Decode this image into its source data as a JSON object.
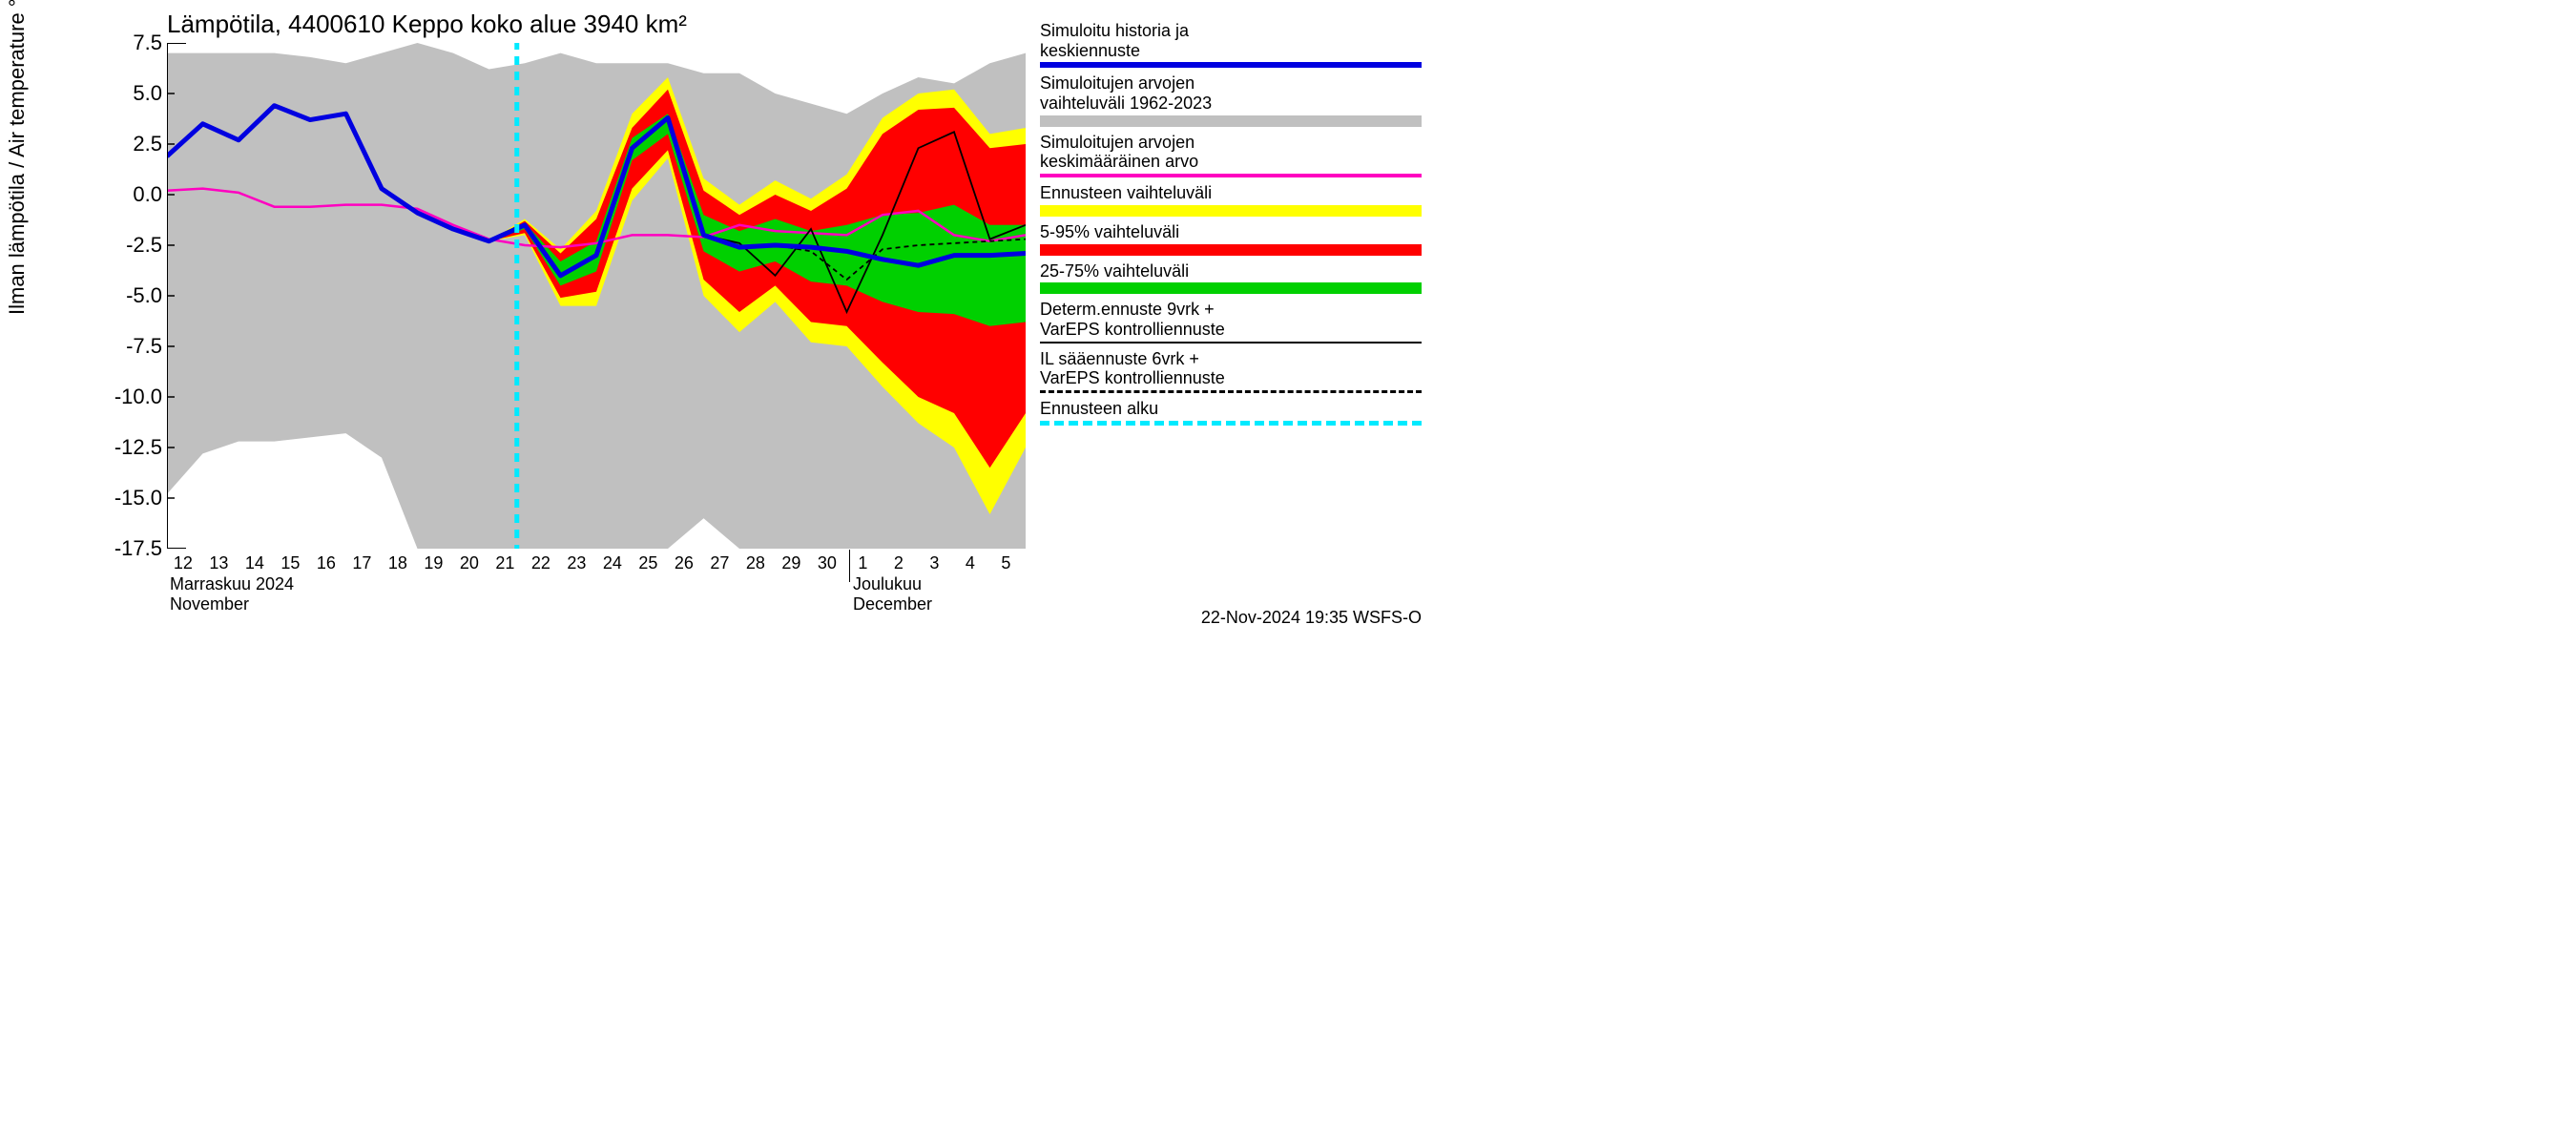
{
  "chart": {
    "type": "line",
    "title": "Lämpötila, 4400610 Keppo koko alue 3940 km²",
    "ylabel": "Ilman lämpötila / Air temperature    °C",
    "footer": "22-Nov-2024 19:35 WSFS-O",
    "background_color": "#ffffff",
    "grid_color": "#808080",
    "x": {
      "ticks": [
        12,
        13,
        14,
        15,
        16,
        17,
        18,
        19,
        20,
        21,
        22,
        23,
        24,
        25,
        26,
        27,
        28,
        29,
        30,
        1,
        2,
        3,
        4,
        5
      ],
      "month1_fi": "Marraskuu 2024",
      "month1_en": "November",
      "month2_fi": "Joulukuu",
      "month2_en": "December",
      "month_split_index": 19
    },
    "y": {
      "min": -17.5,
      "max": 7.5,
      "step": 2.5,
      "ticks": [
        7.5,
        5.0,
        2.5,
        0.0,
        -2.5,
        -5.0,
        -7.5,
        -10.0,
        -12.5,
        -15.0,
        -17.5
      ]
    },
    "forecast_start_index": 10,
    "colors": {
      "historical_range": "#c0c0c0",
      "outer_band": "#ffff00",
      "mid_band": "#ff0000",
      "inner_band": "#00d000",
      "blue_line": "#0000e0",
      "magenta_line": "#ff00c0",
      "black_line": "#000000",
      "forecast_marker": "#00eaff"
    },
    "series": {
      "hist_top": [
        7.0,
        7.0,
        7.0,
        7.0,
        6.8,
        6.5,
        7.0,
        7.5,
        7.0,
        6.2,
        6.5,
        7.0,
        6.5,
        6.5,
        6.5,
        6.0,
        6.0,
        5.0,
        4.5,
        4.0,
        5.0,
        5.8,
        5.5,
        6.5,
        7.0
      ],
      "hist_bot": [
        -14.8,
        -12.8,
        -12.2,
        -12.2,
        -12.0,
        -11.8,
        -13.0,
        -17.5,
        -17.5,
        -17.5,
        -17.5,
        -17.5,
        -17.5,
        -17.5,
        -17.5,
        -16.0,
        -17.5,
        -17.5,
        -17.5,
        -17.5,
        -17.5,
        -17.5,
        -17.5,
        -17.5,
        -17.5
      ],
      "yellow_top": [
        1.9,
        3.5,
        2.7,
        4.4,
        3.7,
        4.0,
        0.3,
        -0.9,
        -1.7,
        -2.3,
        -1.2,
        -2.7,
        -0.8,
        4.0,
        5.8,
        0.8,
        -0.5,
        0.7,
        -0.2,
        1.0,
        3.8,
        5.0,
        5.2,
        3.0,
        3.3
      ],
      "yellow_bot": [
        1.9,
        3.5,
        2.7,
        4.4,
        3.7,
        4.0,
        0.3,
        -0.9,
        -1.7,
        -2.3,
        -2.0,
        -5.5,
        -5.5,
        -0.3,
        1.8,
        -5.0,
        -6.8,
        -5.3,
        -7.3,
        -7.5,
        -9.5,
        -11.3,
        -12.5,
        -15.8,
        -12.5
      ],
      "red_top": [
        1.9,
        3.5,
        2.7,
        4.4,
        3.7,
        4.0,
        0.3,
        -0.9,
        -1.7,
        -2.3,
        -1.3,
        -2.9,
        -1.2,
        3.3,
        5.2,
        0.2,
        -1.0,
        0.0,
        -0.8,
        0.3,
        3.0,
        4.2,
        4.3,
        2.3,
        2.5
      ],
      "red_bot": [
        1.9,
        3.5,
        2.7,
        4.4,
        3.7,
        4.0,
        0.3,
        -0.9,
        -1.7,
        -2.3,
        -1.9,
        -5.1,
        -4.8,
        0.3,
        2.2,
        -4.2,
        -5.8,
        -4.5,
        -6.3,
        -6.5,
        -8.3,
        -10.0,
        -10.8,
        -13.5,
        -10.8
      ],
      "green_top": [
        1.9,
        3.5,
        2.7,
        4.4,
        3.7,
        4.0,
        0.3,
        -0.9,
        -1.7,
        -2.3,
        -1.4,
        -3.3,
        -2.3,
        2.8,
        4.0,
        -1.0,
        -1.8,
        -1.2,
        -1.8,
        -1.5,
        -1.0,
        -0.9,
        -0.5,
        -1.5,
        -1.5
      ],
      "green_bot": [
        1.9,
        3.5,
        2.7,
        4.4,
        3.7,
        4.0,
        0.3,
        -0.9,
        -1.7,
        -2.3,
        -1.7,
        -4.5,
        -3.8,
        1.7,
        3.0,
        -2.8,
        -3.8,
        -3.3,
        -4.3,
        -4.5,
        -5.3,
        -5.8,
        -5.9,
        -6.5,
        -6.3
      ],
      "blue": [
        1.9,
        3.5,
        2.7,
        4.4,
        3.7,
        4.0,
        0.3,
        -0.9,
        -1.7,
        -2.3,
        -1.5,
        -4.0,
        -3.0,
        2.3,
        3.8,
        -2.0,
        -2.6,
        -2.5,
        -2.6,
        -2.8,
        -3.2,
        -3.5,
        -3.0,
        -3.0,
        -2.9
      ],
      "magenta": [
        0.2,
        0.3,
        0.1,
        -0.6,
        -0.6,
        -0.5,
        -0.5,
        -0.7,
        -1.5,
        -2.2,
        -2.5,
        -2.6,
        -2.4,
        -2.0,
        -2.0,
        -2.1,
        -1.5,
        -1.8,
        -1.9,
        -2.0,
        -1.0,
        -0.8,
        -2.0,
        -2.3,
        -2.0
      ],
      "black_solid": [
        null,
        null,
        null,
        null,
        null,
        null,
        null,
        null,
        null,
        null,
        -1.5,
        -4.0,
        -3.0,
        2.3,
        3.8,
        -2.0,
        -2.4,
        -4.0,
        -1.7,
        -5.8,
        -2.0,
        2.3,
        3.1,
        -2.2,
        -1.5
      ],
      "black_dash": [
        null,
        null,
        null,
        null,
        null,
        null,
        null,
        null,
        null,
        null,
        -1.5,
        -4.0,
        -3.0,
        2.3,
        3.8,
        -2.0,
        -2.6,
        -2.5,
        -2.8,
        -4.2,
        -2.7,
        -2.5,
        -2.4,
        -2.3,
        -2.2
      ]
    },
    "legend": [
      {
        "text1": "Simuloitu historia ja",
        "text2": "keskiennuste",
        "swatch": "blue",
        "style": "thick"
      },
      {
        "text1": "Simuloitujen arvojen",
        "text2": "vaihteluväli 1962-2023",
        "swatch": "gray",
        "style": "block"
      },
      {
        "text1": "Simuloitujen arvojen",
        "text2": "keskimääräinen arvo",
        "swatch": "magenta",
        "style": "thin"
      },
      {
        "text1": "Ennusteen vaihteluväli",
        "text2": "",
        "swatch": "yellow",
        "style": "block"
      },
      {
        "text1": "5-95% vaihteluväli",
        "text2": "",
        "swatch": "red",
        "style": "block"
      },
      {
        "text1": "25-75% vaihteluväli",
        "text2": "",
        "swatch": "green",
        "style": "block"
      },
      {
        "text1": "Determ.ennuste 9vrk +",
        "text2": "VarEPS kontrolliennuste",
        "swatch": "black",
        "style": "solidline"
      },
      {
        "text1": "IL sääennuste 6vrk  +",
        "text2": " VarEPS kontrolliennuste",
        "swatch": "black",
        "style": "dashline"
      },
      {
        "text1": "Ennusteen alku",
        "text2": "",
        "swatch": "cyan",
        "style": "dashline"
      }
    ]
  }
}
